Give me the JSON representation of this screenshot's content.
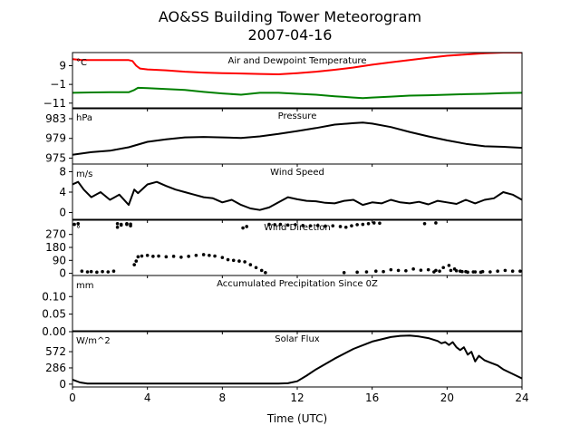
{
  "figure": {
    "title_line1": "AO&SS Building Tower Meteorogram",
    "title_line2": "2007-04-16",
    "xlabel": "Time (UTC)"
  },
  "chart_data": [
    {
      "id": "temp",
      "type": "line",
      "title": "Air and Dewpoint Temperature",
      "unit": "°C",
      "ylim": [
        -14,
        16
      ],
      "yticks": [
        9,
        -1,
        -11
      ],
      "ytick_labels": [
        "9",
        "−1",
        "−11"
      ],
      "xlim": [
        0,
        24
      ],
      "series": [
        {
          "color": "#ff0000",
          "x": [
            0,
            0.5,
            1,
            2,
            3,
            3.2,
            3.4,
            3.6,
            4,
            5,
            6,
            7,
            8,
            9,
            10,
            11,
            12,
            13,
            14,
            15,
            16,
            17,
            18,
            19,
            20,
            21,
            22,
            23,
            24
          ],
          "y": [
            12.5,
            12,
            12,
            12,
            12,
            11.5,
            9,
            7.5,
            7,
            6.5,
            5.8,
            5.3,
            5,
            4.8,
            4.6,
            4.4,
            5,
            5.8,
            6.8,
            8,
            9.5,
            10.8,
            12,
            13.2,
            14.3,
            15,
            15.6,
            16,
            16
          ]
        },
        {
          "color": "#008000",
          "x": [
            0,
            1,
            2,
            3,
            3.3,
            3.5,
            4,
            5,
            6,
            7,
            8,
            9,
            10,
            11,
            12,
            13,
            14,
            15,
            15.5,
            16,
            17,
            18,
            19,
            20,
            21,
            22,
            23,
            24
          ],
          "y": [
            -5.5,
            -5.3,
            -5.2,
            -5.2,
            -4,
            -2.8,
            -3,
            -3.5,
            -4,
            -5,
            -5.8,
            -6.5,
            -5.5,
            -5.5,
            -6,
            -6.5,
            -7.3,
            -8,
            -8.3,
            -8,
            -7.5,
            -7,
            -6.8,
            -6.5,
            -6.2,
            -6,
            -5.7,
            -5.5
          ]
        }
      ]
    },
    {
      "id": "pressure",
      "type": "line",
      "title": "Pressure",
      "unit": "hPa",
      "ylim": [
        973.8,
        985.2
      ],
      "yticks": [
        983,
        979,
        975
      ],
      "ytick_labels": [
        "983",
        "979",
        "975"
      ],
      "xlim": [
        0,
        24
      ],
      "series": [
        {
          "color": "#000000",
          "x": [
            0,
            1,
            2,
            3,
            4,
            5,
            6,
            7,
            8,
            9,
            10,
            11,
            12,
            13,
            14,
            15,
            15.5,
            16,
            17,
            18,
            19,
            20,
            21,
            22,
            23,
            24
          ],
          "y": [
            975.7,
            976.2,
            976.5,
            977.2,
            978.3,
            978.8,
            979.2,
            979.3,
            979.2,
            979.1,
            979.4,
            979.9,
            980.5,
            981.1,
            981.8,
            982.1,
            982.2,
            982,
            981.3,
            980.3,
            979.4,
            978.6,
            977.9,
            977.4,
            977.3,
            977.1
          ]
        }
      ]
    },
    {
      "id": "wind_speed",
      "type": "line",
      "title": "Wind Speed",
      "unit": "m/s",
      "ylim": [
        -1.5,
        9.5
      ],
      "yticks": [
        8,
        4,
        0
      ],
      "ytick_labels": [
        "8",
        "4",
        "0"
      ],
      "xlim": [
        0,
        24
      ],
      "series": [
        {
          "color": "#000000",
          "x": [
            0,
            0.3,
            0.6,
            1,
            1.5,
            2,
            2.5,
            3,
            3.3,
            3.5,
            4,
            4.5,
            5,
            5.5,
            6,
            6.5,
            7,
            7.5,
            8,
            8.5,
            9,
            9.5,
            10,
            10.5,
            11,
            11.5,
            12,
            12.5,
            13,
            13.5,
            14,
            14.5,
            15,
            15.5,
            16,
            16.5,
            17,
            17.5,
            18,
            18.5,
            19,
            19.5,
            20,
            20.5,
            21,
            21.5,
            22,
            22.5,
            23,
            23.5,
            24
          ],
          "y": [
            5.5,
            6,
            4.5,
            3,
            4,
            2.5,
            3.5,
            1.5,
            4.5,
            3.8,
            5.5,
            6,
            5.2,
            4.5,
            4,
            3.5,
            3,
            2.8,
            2,
            2.5,
            1.5,
            0.8,
            0.5,
            1,
            2,
            3,
            2.6,
            2.3,
            2.2,
            1.9,
            1.8,
            2.3,
            2.5,
            1.5,
            2,
            1.8,
            2.5,
            2,
            1.8,
            2.1,
            1.6,
            2.3,
            2,
            1.7,
            2.5,
            1.8,
            2.5,
            2.8,
            4,
            3.5,
            2.5
          ]
        }
      ]
    },
    {
      "id": "wind_dir",
      "type": "scatter",
      "title": "Wind Direction",
      "unit": "°",
      "ylim": [
        -15,
        375
      ],
      "yticks": [
        270,
        180,
        90,
        0
      ],
      "ytick_labels": [
        "270",
        "180",
        "90",
        "0"
      ],
      "xlim": [
        0,
        24
      ],
      "series": [
        {
          "color": "#000000",
          "x": [
            0.1,
            0.3,
            0.5,
            0.8,
            1,
            1.3,
            1.6,
            1.9,
            2.2,
            2.4,
            2.6,
            2.9,
            3.1,
            3.3,
            3.4,
            3.5,
            3.7,
            4,
            4.3,
            4.6,
            5,
            5.4,
            5.8,
            6.2,
            6.6,
            7,
            7.3,
            7.6,
            8,
            8.3,
            8.6,
            8.9,
            9.2,
            9.5,
            9.8,
            10.1,
            10.3,
            10.5,
            10.8,
            11.1,
            11.5,
            11.9,
            12.3,
            12.7,
            13.1,
            13.5,
            13.9,
            14.3,
            14.6,
            14.9,
            15.2,
            15.5,
            15.8,
            16.1,
            16.4,
            14.5,
            15.2,
            15.7,
            16.2,
            16.6,
            17,
            17.4,
            17.8,
            18.2,
            18.6,
            19,
            19.4,
            19.8,
            20.1,
            20.4,
            20.7,
            21,
            21.4,
            21.8,
            19.3,
            19.6,
            20.2,
            20.5,
            20.8,
            21.1,
            21.5,
            21.9,
            22.3,
            22.7,
            23.1,
            23.5,
            23.9,
            2.4,
            2.6,
            2.9,
            3.1,
            9.1,
            9.3,
            18.8,
            19.4
          ],
          "y": [
            340,
            345,
            15,
            10,
            12,
            8,
            12,
            10,
            15,
            345,
            340,
            345,
            342,
            60,
            85,
            115,
            120,
            125,
            118,
            120,
            115,
            118,
            112,
            118,
            125,
            130,
            125,
            120,
            110,
            95,
            90,
            85,
            80,
            60,
            40,
            20,
            5,
            340,
            338,
            340,
            335,
            338,
            332,
            330,
            332,
            328,
            330,
            325,
            320,
            330,
            338,
            340,
            345,
            350,
            348,
            5,
            8,
            10,
            15,
            12,
            25,
            20,
            18,
            30,
            22,
            25,
            20,
            40,
            55,
            30,
            15,
            12,
            10,
            8,
            10,
            15,
            20,
            18,
            12,
            8,
            10,
            12,
            10,
            15,
            20,
            15,
            15,
            320,
            335,
            340,
            330,
            315,
            325,
            345,
            350
          ]
        }
      ]
    },
    {
      "id": "precip",
      "type": "line",
      "title": "Accumulated Precipitation Since 0Z",
      "unit": "mm",
      "ylim": [
        0,
        0.16
      ],
      "yticks": [
        0.1,
        0.05,
        0
      ],
      "ytick_labels": [
        "0.10",
        "0.05",
        "0.00"
      ],
      "xlim": [
        0,
        24
      ],
      "series": [
        {
          "color": "#000000",
          "x": [
            0,
            24
          ],
          "y": [
            0,
            0
          ]
        }
      ]
    },
    {
      "id": "solar",
      "type": "line",
      "title": "Solar Flux",
      "unit": "W/m^2",
      "ylim": [
        -50,
        940
      ],
      "yticks": [
        572,
        286,
        0
      ],
      "ytick_labels": [
        "572",
        "286",
        "0"
      ],
      "xlim": [
        0,
        24
      ],
      "xticks": [
        0,
        4,
        8,
        12,
        16,
        20,
        24
      ],
      "xtick_labels": [
        "0",
        "4",
        "8",
        "12",
        "16",
        "20",
        "24"
      ],
      "series": [
        {
          "color": "#000000",
          "x": [
            0,
            0.4,
            0.8,
            1.5,
            3,
            6,
            9,
            11,
            11.5,
            12,
            12.5,
            13,
            14,
            15,
            16,
            17,
            17.5,
            18,
            18.5,
            19,
            19.5,
            19.7,
            19.9,
            20.1,
            20.3,
            20.5,
            20.7,
            20.9,
            21.1,
            21.3,
            21.5,
            21.7,
            22,
            22.3,
            22.7,
            23,
            23.5,
            24
          ],
          "y": [
            80,
            30,
            10,
            10,
            10,
            10,
            10,
            10,
            15,
            50,
            150,
            260,
            450,
            620,
            750,
            830,
            850,
            855,
            840,
            810,
            760,
            720,
            740,
            690,
            740,
            650,
            600,
            650,
            520,
            570,
            400,
            500,
            420,
            380,
            330,
            260,
            180,
            100
          ]
        }
      ]
    }
  ]
}
